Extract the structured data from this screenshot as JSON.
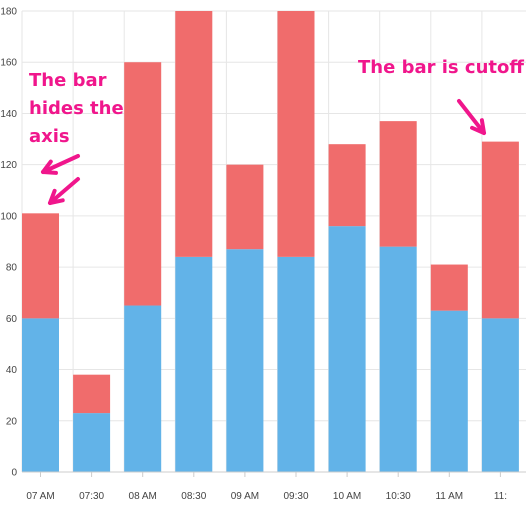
{
  "chart_data": {
    "type": "bar",
    "stacked": true,
    "categories": [
      "07 AM",
      "07:30",
      "08 AM",
      "08:30",
      "09 AM",
      "09:30",
      "10 AM",
      "10:30",
      "11 AM",
      "11:"
    ],
    "series": [
      {
        "values": [
          60,
          23,
          65,
          84,
          87,
          84,
          96,
          88,
          63,
          60
        ]
      },
      {
        "values": [
          41,
          15,
          95,
          96,
          33,
          96,
          32,
          49,
          18,
          69
        ]
      }
    ],
    "ylim": [
      0,
      180
    ],
    "yticks": [
      0,
      20,
      40,
      60,
      80,
      100,
      120,
      140,
      160,
      180
    ],
    "grid": true,
    "annotations": [
      {
        "lines": [
          "The bar",
          "hides the",
          "axis"
        ]
      },
      {
        "lines": [
          "The bar is cutoff"
        ]
      }
    ]
  },
  "colors": {
    "series_1": "#62b3e8",
    "series_2": "#f06c6c",
    "grid": "#e6e6e6",
    "axis": "#cccccc",
    "annotation": "#f0168c"
  }
}
